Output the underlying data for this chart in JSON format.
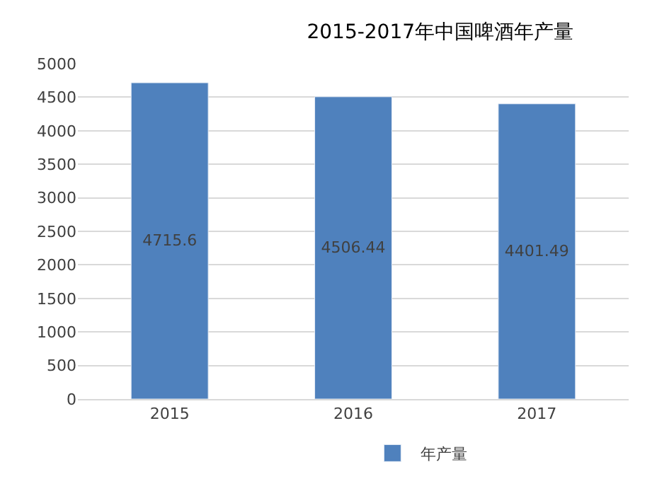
{
  "chart_data": {
    "type": "bar",
    "title": "2015-2017年中国啤酒年产量",
    "categories": [
      "2015",
      "2016",
      "2017"
    ],
    "series": [
      {
        "name": "年产量",
        "color": "#4f81bd",
        "values": [
          4715.6,
          4506.44,
          4401.49
        ]
      }
    ],
    "ylim": [
      0,
      5000
    ],
    "yticks": [
      0,
      500,
      1000,
      1500,
      2000,
      2500,
      3000,
      3500,
      4000,
      4500,
      5000
    ],
    "grid": "y",
    "legend": "bottom",
    "data_labels": true
  }
}
